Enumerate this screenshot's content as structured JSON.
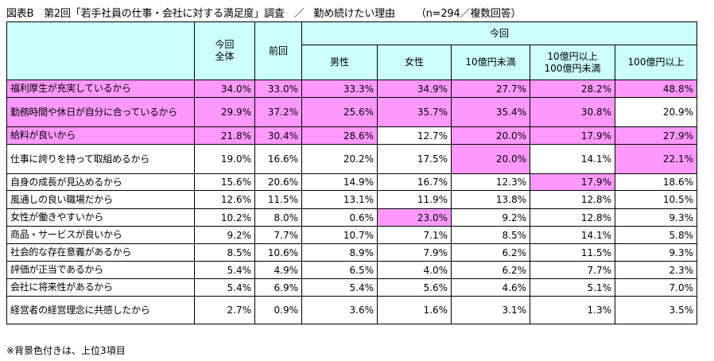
{
  "title": {
    "main": "図表B　第2回「若手社員の仕事・会社に対する満足度」調査",
    "sep": "／",
    "sub": "勤め続けたい理由",
    "n": "（n=294／複数回答）"
  },
  "headers": {
    "total": "今回\n全体",
    "prev": "前回",
    "current": "今回",
    "groups": [
      "男性",
      "女性",
      "10億円未満",
      "10億円以上\n100億円未満",
      "100億円以上"
    ]
  },
  "highlight_color": "#ff99ff",
  "header_color": "#ccffff",
  "rows": [
    {
      "label": "福利厚生が充実しているから",
      "values": [
        "34.0%",
        "33.0%",
        "33.3%",
        "34.9%",
        "27.7%",
        "28.2%",
        "48.8%"
      ],
      "hl": [
        1,
        1,
        1,
        1,
        1,
        1,
        1
      ]
    },
    {
      "label": "勤務時間や休日が自分に合っているから",
      "values": [
        "29.9%",
        "37.2%",
        "25.6%",
        "35.7%",
        "35.4%",
        "30.8%",
        "20.9%"
      ],
      "hl": [
        1,
        1,
        1,
        1,
        1,
        1,
        0
      ]
    },
    {
      "label": "給料が良いから",
      "values": [
        "21.8%",
        "30.4%",
        "28.6%",
        "12.7%",
        "20.0%",
        "17.9%",
        "27.9%"
      ],
      "hl": [
        1,
        1,
        1,
        0,
        1,
        1,
        1
      ]
    },
    {
      "label": "仕事に誇りを持って取組めるから",
      "values": [
        "19.0%",
        "16.6%",
        "20.2%",
        "17.5%",
        "20.0%",
        "14.1%",
        "22.1%"
      ],
      "hl": [
        0,
        0,
        0,
        0,
        1,
        0,
        1
      ]
    },
    {
      "label": "自身の成長が見込めるから",
      "values": [
        "15.6%",
        "20.6%",
        "14.9%",
        "16.7%",
        "12.3%",
        "17.9%",
        "18.6%"
      ],
      "hl": [
        0,
        0,
        0,
        0,
        0,
        1,
        0
      ]
    },
    {
      "label": "風通しの良い職場だから",
      "values": [
        "12.6%",
        "11.5%",
        "13.1%",
        "11.9%",
        "13.8%",
        "12.8%",
        "10.5%"
      ],
      "hl": [
        0,
        0,
        0,
        0,
        0,
        0,
        0
      ]
    },
    {
      "label": "女性が働きやすいから",
      "values": [
        "10.2%",
        "8.0%",
        "0.6%",
        "23.0%",
        "9.2%",
        "12.8%",
        "9.3%"
      ],
      "hl": [
        0,
        0,
        0,
        1,
        0,
        0,
        0
      ]
    },
    {
      "label": "商品・サービスが良いから",
      "values": [
        "9.2%",
        "7.7%",
        "10.7%",
        "7.1%",
        "8.5%",
        "14.1%",
        "5.8%"
      ],
      "hl": [
        0,
        0,
        0,
        0,
        0,
        0,
        0
      ]
    },
    {
      "label": "社会的な存在意義があるから",
      "values": [
        "8.5%",
        "10.6%",
        "8.9%",
        "7.9%",
        "6.2%",
        "11.5%",
        "9.3%"
      ],
      "hl": [
        0,
        0,
        0,
        0,
        0,
        0,
        0
      ]
    },
    {
      "label": "評価が正当であるから",
      "values": [
        "5.4%",
        "4.9%",
        "6.5%",
        "4.0%",
        "6.2%",
        "7.7%",
        "2.3%"
      ],
      "hl": [
        0,
        0,
        0,
        0,
        0,
        0,
        0
      ]
    },
    {
      "label": "会社に将来性があるから",
      "values": [
        "5.4%",
        "6.9%",
        "5.4%",
        "5.6%",
        "4.6%",
        "5.1%",
        "7.0%"
      ],
      "hl": [
        0,
        0,
        0,
        0,
        0,
        0,
        0
      ]
    },
    {
      "label": "経営者の経営理念に共感したから",
      "values": [
        "2.7%",
        "0.9%",
        "3.6%",
        "1.6%",
        "3.1%",
        "1.3%",
        "3.5%"
      ],
      "hl": [
        0,
        0,
        0,
        0,
        0,
        0,
        0
      ]
    }
  ],
  "note": "※背景色付きは、上位3項目"
}
